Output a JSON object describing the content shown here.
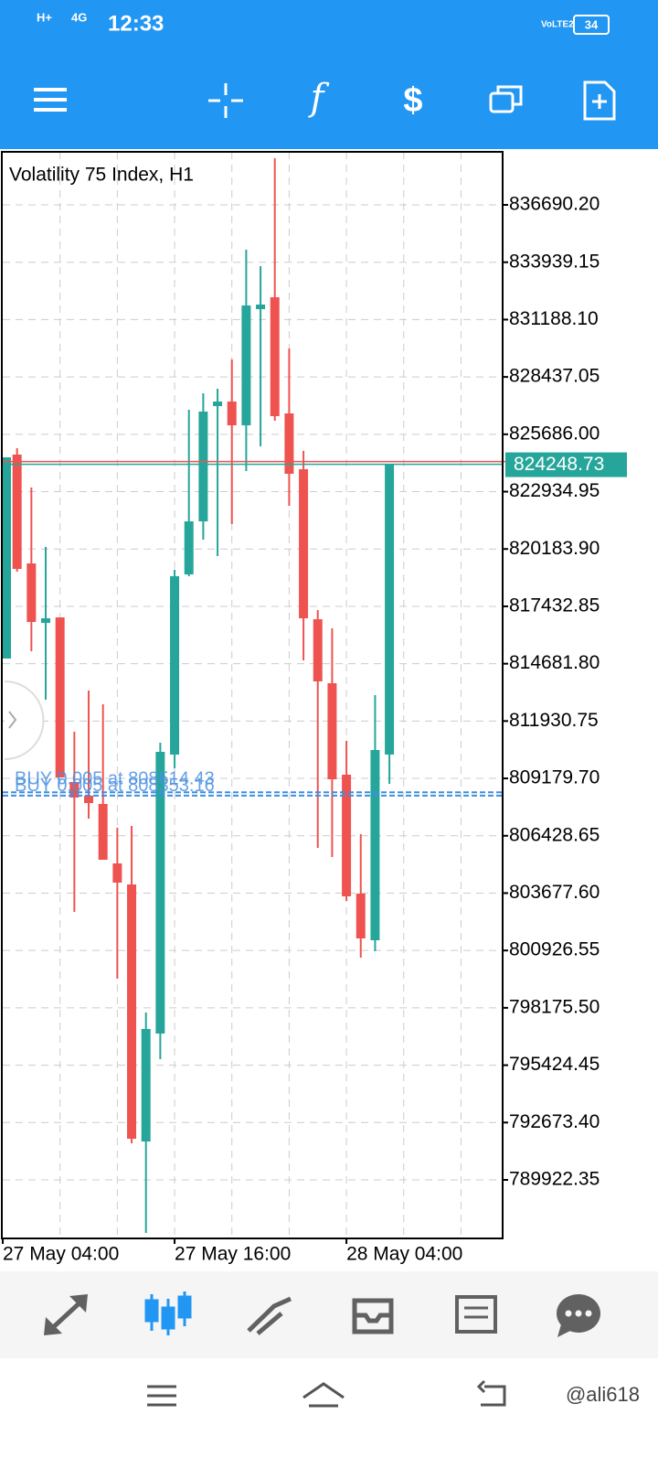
{
  "status_bar": {
    "time": "12:33",
    "network1": "H+",
    "network2": "4G",
    "volte": "VoLTE2",
    "battery": "34"
  },
  "chart_data": {
    "type": "candlestick",
    "title": "Volatility 75 Index, H1",
    "categories": [
      "27 May 04:00",
      null,
      null,
      null,
      null,
      null,
      null,
      null,
      null,
      null,
      null,
      null,
      "27 May 16:00",
      null,
      null,
      null,
      null,
      null,
      null,
      null,
      null,
      null,
      null,
      null,
      "28 May 04:00",
      null,
      null,
      null
    ],
    "open": [
      814929,
      824713,
      819492,
      816640,
      816904,
      809007,
      808348,
      807954,
      805102,
      804093,
      791764,
      796941,
      810323,
      818966,
      821510,
      827038,
      827258,
      826117,
      831689,
      832259,
      826687,
      824011,
      816816,
      813745,
      809358,
      803654,
      801417,
      810323
    ],
    "high": [
      824581,
      825020,
      823134,
      820282,
      816904,
      811420,
      813394,
      812736,
      806813,
      806901,
      797951,
      810893,
      819185,
      826863,
      827653,
      827872,
      829276,
      834541,
      833751,
      838928,
      829802,
      824889,
      817255,
      816377,
      810981,
      806506,
      813174,
      824248.73
    ],
    "low": [
      814929,
      819097,
      815280,
      812955,
      809226,
      802777,
      807252,
      805277,
      799574,
      791677,
      787377,
      795713,
      809665,
      818878,
      820633,
      819843,
      821379,
      823923,
      825108,
      826336,
      822256,
      814842,
      805848,
      805409,
      803303,
      800583,
      800890,
      808919
    ],
    "close": [
      824581,
      819229,
      816684,
      816860,
      809226,
      808261,
      807997,
      805277,
      804181,
      791896,
      797161,
      810454,
      818878,
      821510,
      826775,
      827258,
      826117,
      831864,
      831908,
      826556,
      823792,
      816860,
      813833,
      809138,
      803522,
      801504,
      810542,
      824248.73
    ],
    "up_color": "#26a69a",
    "down_color": "#ef5350",
    "ylim": [
      787114,
      839235
    ],
    "yticks": [
      {
        "value": 836690.2,
        "label": "836690.20"
      },
      833939.15,
      {
        "value": 831188.1,
        "label": "831188.10"
      },
      828437.05,
      {
        "value": 825686.0,
        "label": "825686.00"
      },
      822934.95,
      {
        "value": 820183.9,
        "label": "820183.90"
      },
      817432.85,
      {
        "value": 814681.8,
        "label": "814681.80"
      },
      811930.75,
      {
        "value": 809179.7,
        "label": "809179.70"
      },
      806428.65,
      {
        "value": 803677.6,
        "label": "803677.60"
      },
      800926.55,
      {
        "value": 798175.5,
        "label": "798175.50"
      },
      795424.45,
      {
        "value": 792673.4,
        "label": "792673.40"
      },
      789922.35
    ],
    "grid": true,
    "current_price": 824248.73,
    "orders": [
      {
        "label": "BUY 0.005 at 808514.43",
        "price": 808514.43
      },
      {
        "label": "BUY 0.005 at 808353.16",
        "price": 808353.16
      }
    ]
  },
  "watermark": "@ali618"
}
